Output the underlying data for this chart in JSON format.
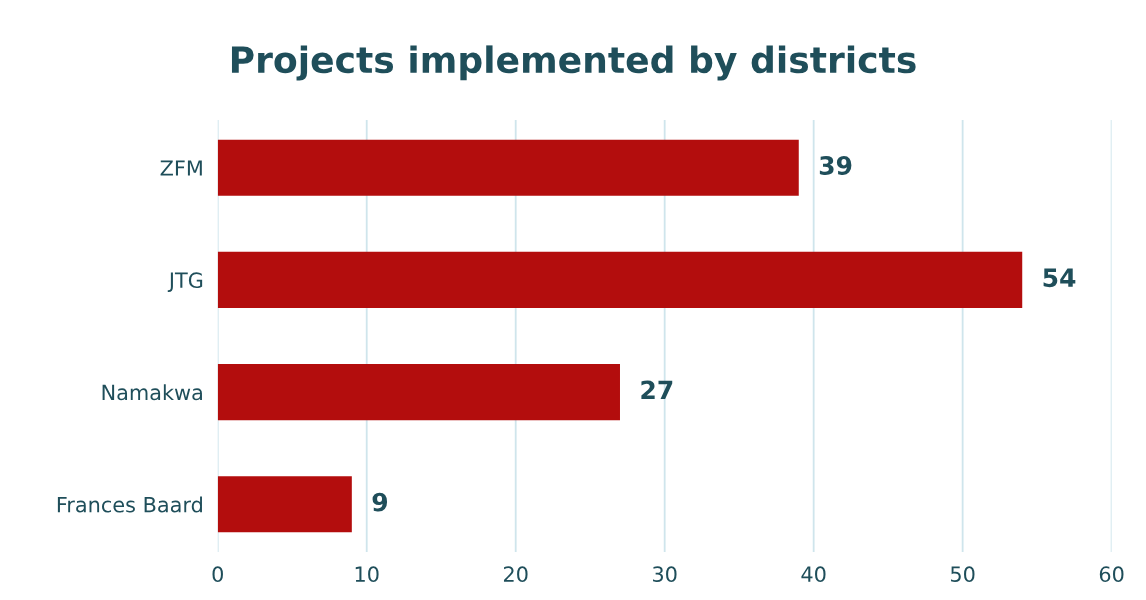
{
  "chart_data": {
    "type": "bar",
    "orientation": "horizontal",
    "title": "Projects implemented by districts",
    "categories": [
      "ZFM",
      "JTG",
      "Namakwa",
      "Frances Baard"
    ],
    "values": [
      39,
      54,
      27,
      9
    ],
    "color": "#b30d0d",
    "xlim": [
      0,
      60
    ],
    "xticks": [
      0,
      10,
      20,
      30,
      40,
      50,
      60
    ],
    "grid": "x",
    "data_labels": true
  }
}
